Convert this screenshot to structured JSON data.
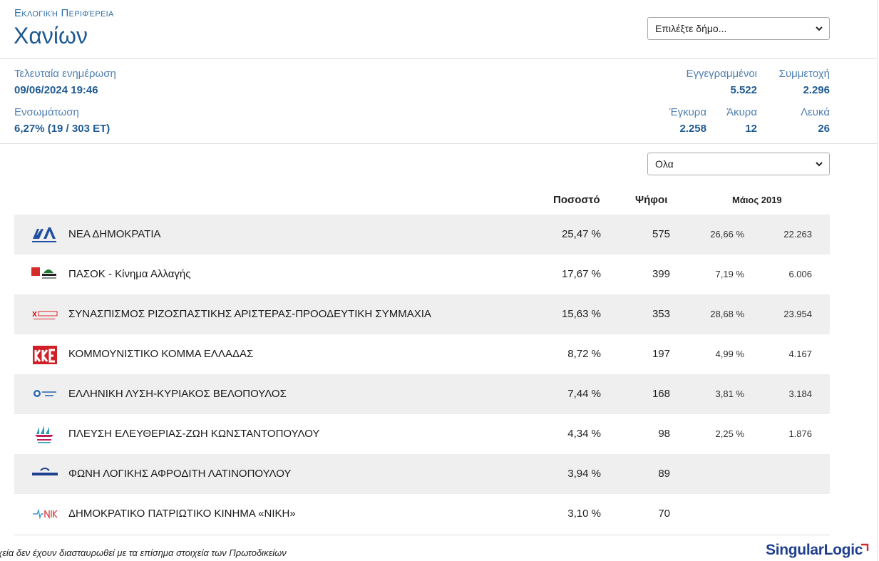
{
  "header": {
    "subtitle": "Εκλογική Περιφέρεια",
    "title": "Χανίων",
    "municipality_select": "Επιλέξτε δήμο..."
  },
  "stats": {
    "last_update_label": "Τελευταία ενημέρωση",
    "last_update_value": "09/06/2024 19:46",
    "integration_label": "Ενσωμάτωση",
    "integration_value": "6,27% (19 / 303 ΕΤ)",
    "registered_label": "Εγγεγραμμένοι",
    "registered_value": "5.522",
    "participation_label": "Συμμετοχή",
    "participation_value": "2.296",
    "valid_label": "Έγκυρα",
    "valid_value": "2.258",
    "invalid_label": "Άκυρα",
    "invalid_value": "12",
    "blank_label": "Λευκά",
    "blank_value": "26"
  },
  "filter": {
    "selected": "Ολα"
  },
  "table": {
    "headers": {
      "percent": "Ποσοστό",
      "votes": "Ψήφοι",
      "previous": "Μάιος 2019"
    },
    "rows": [
      {
        "logo": "nd-logo",
        "name": "ΝΕΑ ΔΗΜΟΚΡΑΤΙΑ",
        "pct": "25,47 %",
        "votes": "575",
        "pct2019": "26,66 %",
        "votes2019": "22.263"
      },
      {
        "logo": "pasok-logo",
        "name": "ΠΑΣΟΚ - Κίνημα Αλλαγής",
        "pct": "17,67 %",
        "votes": "399",
        "pct2019": "7,19 %",
        "votes2019": "6.006"
      },
      {
        "logo": "syriza-logo",
        "name": "ΣΥΝΑΣΠΙΣΜΟΣ ΡΙΖΟΣΠΑΣΤΙΚΗΣ ΑΡΙΣΤΕΡΑΣ-ΠΡΟΟΔΕΥΤΙΚΗ ΣΥΜΜΑΧΙΑ",
        "pct": "15,63 %",
        "votes": "353",
        "pct2019": "28,68 %",
        "votes2019": "23.954"
      },
      {
        "logo": "kke-logo",
        "name": "ΚΟΜΜΟΥΝΙΣΤΙΚΟ ΚΟΜΜΑ ΕΛΛΑΔΑΣ",
        "pct": "8,72 %",
        "votes": "197",
        "pct2019": "4,99 %",
        "votes2019": "4.167"
      },
      {
        "logo": "elliniki-lysi-logo",
        "name": "ΕΛΛΗΝΙΚΗ ΛΥΣΗ-ΚΥΡΙΑΚΟΣ ΒΕΛΟΠΟΥΛΟΣ",
        "pct": "7,44 %",
        "votes": "168",
        "pct2019": "3,81 %",
        "votes2019": "3.184"
      },
      {
        "logo": "plefsi-logo",
        "name": "ΠΛΕΥΣΗ ΕΛΕΥΘΕΡΙΑΣ-ΖΩΗ ΚΩΝΣΤΑΝΤΟΠΟΥΛΟΥ",
        "pct": "4,34 %",
        "votes": "98",
        "pct2019": "2,25 %",
        "votes2019": "1.876"
      },
      {
        "logo": "foni-logikis-logo",
        "name": "ΦΩΝΗ ΛΟΓΙΚΗΣ ΑΦΡΟΔΙΤΗ ΛΑΤΙΝΟΠΟΥΛΟΥ",
        "pct": "3,94 %",
        "votes": "89",
        "pct2019": "",
        "votes2019": ""
      },
      {
        "logo": "niki-logo",
        "name": "ΔΗΜΟΚΡΑΤΙΚΟ ΠΑΤΡΙΩΤΙΚΟ ΚΙΝΗΜΑ «ΝΙΚΗ»",
        "pct": "3,10 %",
        "votes": "70",
        "pct2019": "",
        "votes2019": ""
      }
    ]
  },
  "footer": {
    "disclaimer": "οιχεία δεν έχουν διασταυρωθεί με τα επίσημα στοιχεία των Πρωτοδικείων",
    "brand_a": "Singular",
    "brand_b": "Logic"
  },
  "colors": {
    "accent": "#1f5a92",
    "label": "#4f7fb0",
    "row_shade": "#efefef"
  }
}
